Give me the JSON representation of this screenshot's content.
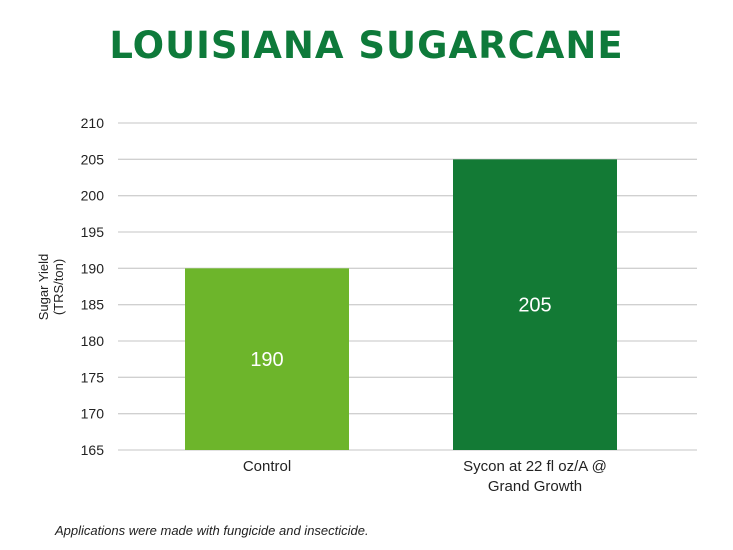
{
  "chart_data": {
    "type": "bar",
    "title": "LOUISIANA SUGARCANE",
    "ylabel": [
      "Sugar Yield",
      "(TRS/ton)"
    ],
    "xlabel": "",
    "categories": [
      [
        "Control"
      ],
      [
        "Sycon at 22 fl oz/A @",
        "Grand Growth"
      ]
    ],
    "values": [
      190,
      205
    ],
    "data_labels": [
      "190",
      "205"
    ],
    "ylim": [
      165,
      210
    ],
    "yticks": [
      165,
      170,
      175,
      180,
      185,
      190,
      195,
      200,
      205,
      210
    ],
    "grid": true,
    "colors": [
      "#6db52b",
      "#137a35"
    ],
    "footnote": "Applications were made with fungicide and insecticide."
  }
}
